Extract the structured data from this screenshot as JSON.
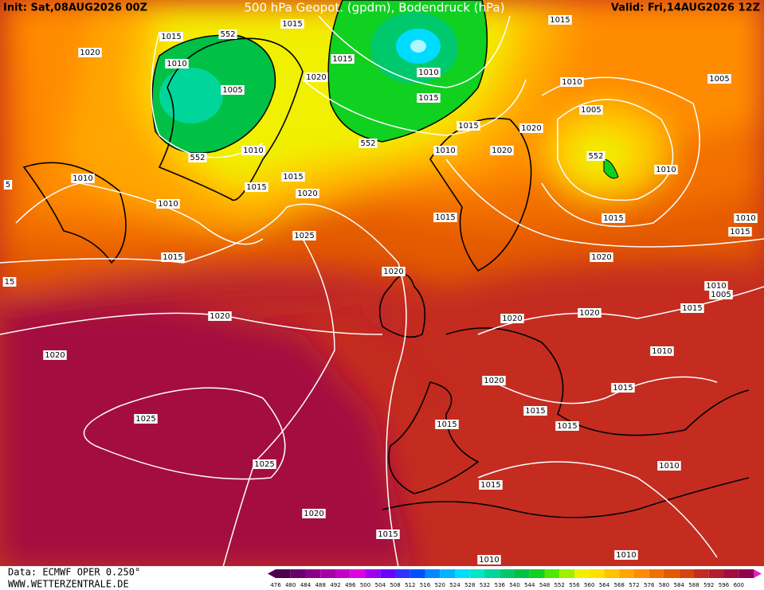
{
  "header": {
    "init": "Init: Sat,08AUG2026 00Z",
    "title": "500 hPa Geopot. (gpdm), Bodendruck (hPa)",
    "valid": "Valid: Fri,14AUG2026 12Z"
  },
  "contour_labels": [
    "1015",
    "552",
    "1015",
    "1015",
    "1020",
    "1010",
    "1015",
    "1010",
    "1010",
    "1005",
    "1005",
    "1020",
    "1015",
    "1005",
    "1015",
    "1020",
    "1010",
    "552",
    "552",
    "1010",
    "1020",
    "552",
    "1010",
    "1010",
    "1015",
    "1015",
    "1020",
    "1010",
    "1015",
    "1015",
    "1010",
    "1015",
    "1025",
    "1015",
    "1020",
    "1020",
    "1010",
    "1005",
    "1015",
    "1020",
    "1020",
    "1020",
    "1010",
    "1020",
    "1020",
    "1015",
    "1015",
    "1025",
    "1015",
    "1015",
    "1010",
    "1025",
    "1015",
    "1020",
    "1015",
    "1010",
    "1010",
    "5",
    "15"
  ],
  "footer": {
    "source": "Data: ECMWF OPER 0.250°",
    "site": "WWW.WETTERZENTRALE.DE"
  },
  "legend": {
    "values": [
      476,
      480,
      484,
      488,
      492,
      496,
      500,
      504,
      508,
      512,
      516,
      520,
      524,
      528,
      532,
      536,
      540,
      544,
      548,
      552,
      556,
      560,
      564,
      568,
      572,
      576,
      580,
      584,
      588,
      592,
      596,
      600
    ],
    "colors": [
      "#4b0050",
      "#6a006e",
      "#8a008c",
      "#a800a8",
      "#c400c4",
      "#e000e0",
      "#a000f0",
      "#6a00ff",
      "#3030ff",
      "#0050ff",
      "#0088ff",
      "#00b4ff",
      "#00dcff",
      "#00e6c8",
      "#00d69a",
      "#00c86c",
      "#00c046",
      "#10d020",
      "#50e800",
      "#a0f000",
      "#f0f000",
      "#ffe000",
      "#ffc400",
      "#ffa600",
      "#ff8c00",
      "#f27000",
      "#e45a00",
      "#d64410",
      "#c42c20",
      "#b41c30",
      "#a40c40",
      "#92004e"
    ]
  }
}
